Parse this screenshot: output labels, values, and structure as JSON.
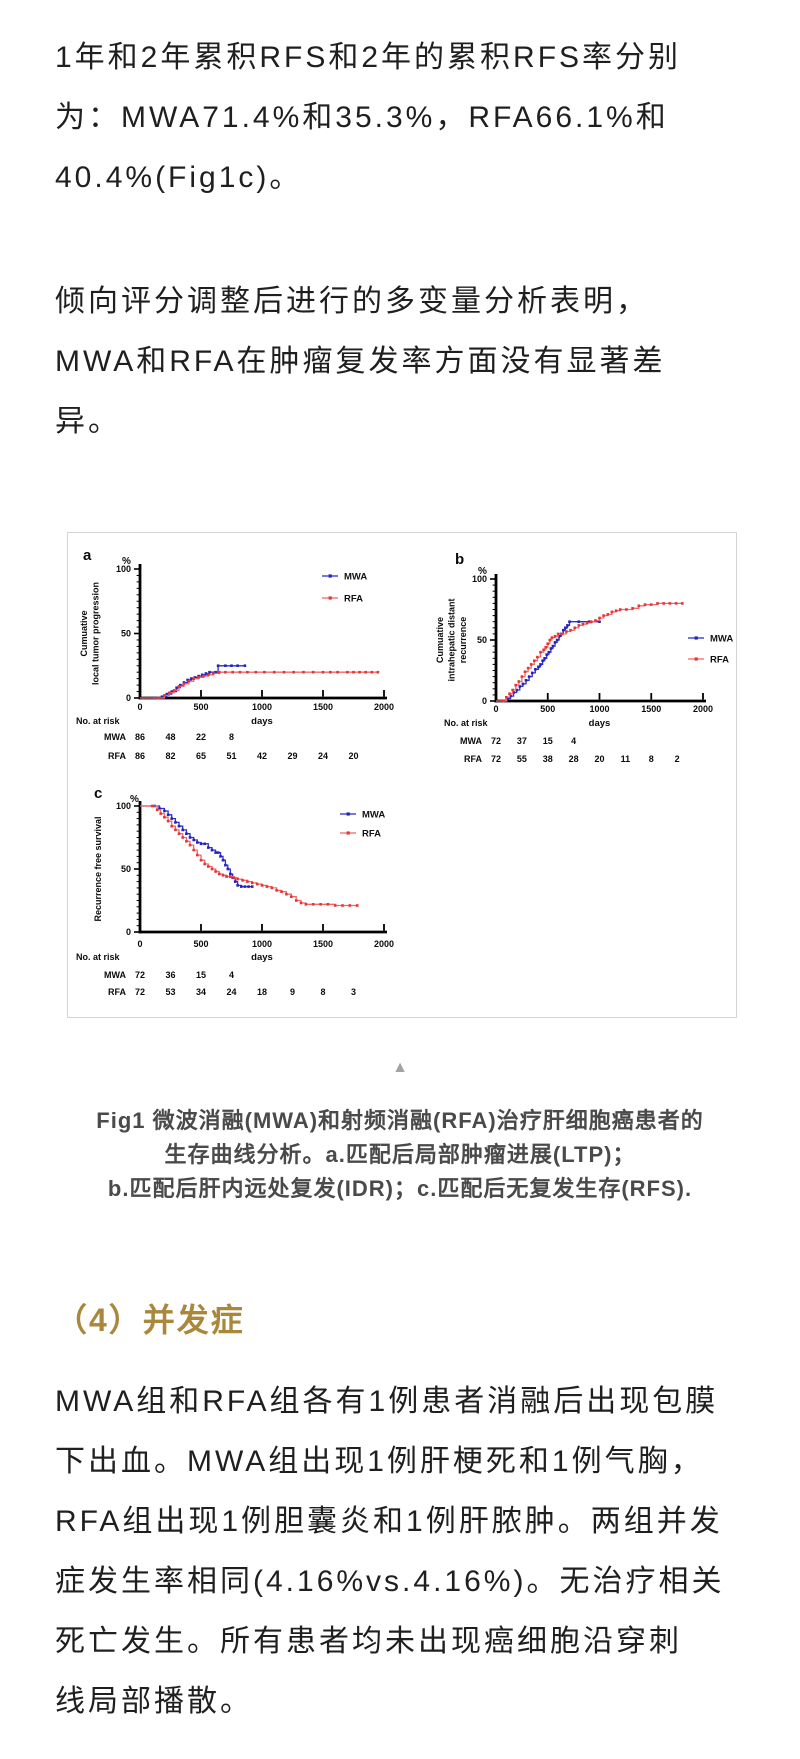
{
  "colors": {
    "body_text": "#1f1f1f",
    "caption_text": "#4a4a4a",
    "heading_gold": "#a9873b",
    "mwa_blue": "#2a2ac8",
    "rfa_red": "#e63535",
    "figure_border": "#d4d4d4",
    "triangle_gray": "#a3a3a3"
  },
  "paragraphs": {
    "p1": "1年和2年累积RFS和2年的累积RFS率分别\n为：MWA71.4%和35.3%，RFA66.1%和\n40.4%(Fig1c)。",
    "p2": "倾向评分调整后进行的多变量分析表明，\nMWA和RFA在肿瘤复发率方面没有显著差\n异。",
    "p3": "MWA组和RFA组各有1例患者消融后出现包膜\n下出血。MWA组出现1例肝梗死和1例气胸，\nRFA组出现1例胆囊炎和1例肝脓肿。两组并发\n症发生率相同(4.16%vs.4.16%)。无治疗相关\n死亡发生。所有患者均未出现癌细胞沿穿刺\n线局部播散。"
  },
  "figure": {
    "collapse_icon": "▲",
    "caption": "Fig1 微波消融(MWA)和射频消融(RFA)治疗肝细胞癌患者的\n生存曲线分析。a.匹配后局部肿瘤进展(LTP)；\nb.匹配后肝内远处复发(IDR)；c.匹配后无复发生存(RFS)."
  },
  "section_heading": "（4）并发症",
  "chart_data": [
    {
      "id": "a",
      "type": "line",
      "panel_label": "a",
      "percent_symbol": "%",
      "ylabel_lines": [
        "Cumuative",
        "local tumor progression"
      ],
      "xlabel": "days",
      "ylim": [
        0,
        100
      ],
      "yticks": [
        0,
        50,
        100
      ],
      "xlim": [
        0,
        2000
      ],
      "xticks": [
        0,
        500,
        1000,
        1500,
        2000
      ],
      "series": [
        {
          "name": "MWA",
          "color": "#2424bb",
          "line_color": "#2e2ecf",
          "points": [
            [
              0,
              0
            ],
            [
              120,
              0
            ],
            [
              180,
              1
            ],
            [
              220,
              3
            ],
            [
              260,
              5
            ],
            [
              300,
              8
            ],
            [
              330,
              10
            ],
            [
              360,
              12
            ],
            [
              390,
              14
            ],
            [
              420,
              15
            ],
            [
              450,
              16
            ],
            [
              480,
              17
            ],
            [
              510,
              18
            ],
            [
              540,
              19
            ],
            [
              570,
              20
            ],
            [
              620,
              20
            ],
            [
              640,
              25
            ],
            [
              700,
              25
            ],
            [
              750,
              25
            ],
            [
              800,
              25
            ],
            [
              860,
              25
            ]
          ]
        },
        {
          "name": "RFA",
          "color": "#e53535",
          "line_color": "#f06a6a",
          "points": [
            [
              0,
              0
            ],
            [
              150,
              0
            ],
            [
              200,
              2
            ],
            [
              240,
              4
            ],
            [
              280,
              6
            ],
            [
              320,
              9
            ],
            [
              360,
              11
            ],
            [
              400,
              13
            ],
            [
              440,
              15
            ],
            [
              480,
              16
            ],
            [
              520,
              17
            ],
            [
              560,
              18
            ],
            [
              600,
              19
            ],
            [
              650,
              20
            ],
            [
              700,
              20
            ],
            [
              760,
              20
            ],
            [
              820,
              20
            ],
            [
              880,
              20
            ],
            [
              950,
              20
            ],
            [
              1020,
              20
            ],
            [
              1100,
              20
            ],
            [
              1180,
              20
            ],
            [
              1260,
              20
            ],
            [
              1340,
              20
            ],
            [
              1420,
              20
            ],
            [
              1500,
              20
            ],
            [
              1560,
              20
            ],
            [
              1620,
              20
            ],
            [
              1700,
              20
            ],
            [
              1750,
              20
            ],
            [
              1800,
              20
            ],
            [
              1850,
              20
            ],
            [
              1900,
              20
            ],
            [
              1950,
              20
            ]
          ]
        }
      ],
      "at_risk": {
        "title": "No. at risk",
        "interval": 250,
        "rows": [
          {
            "label": "MWA",
            "values": [
              86,
              48,
              22,
              8
            ]
          },
          {
            "label": "RFA",
            "values": [
              86,
              82,
              65,
              51,
              42,
              29,
              24,
              20
            ]
          }
        ]
      }
    },
    {
      "id": "b",
      "type": "line",
      "panel_label": "b",
      "percent_symbol": "%",
      "ylabel_lines": [
        "Cumuative",
        "intrahepatic distant",
        "recurrence"
      ],
      "xlabel": "days",
      "ylim": [
        0,
        100
      ],
      "yticks": [
        0,
        50,
        100
      ],
      "xlim": [
        0,
        2000
      ],
      "xticks": [
        0,
        500,
        1000,
        1500,
        2000
      ],
      "series": [
        {
          "name": "MWA",
          "color": "#2424bb",
          "line_color": "#2e2ecf",
          "points": [
            [
              0,
              0
            ],
            [
              80,
              0
            ],
            [
              110,
              2
            ],
            [
              140,
              4
            ],
            [
              170,
              7
            ],
            [
              200,
              9
            ],
            [
              230,
              12
            ],
            [
              260,
              14
            ],
            [
              290,
              17
            ],
            [
              320,
              20
            ],
            [
              350,
              23
            ],
            [
              380,
              26
            ],
            [
              410,
              28
            ],
            [
              430,
              30
            ],
            [
              450,
              33
            ],
            [
              470,
              35
            ],
            [
              490,
              38
            ],
            [
              510,
              40
            ],
            [
              530,
              43
            ],
            [
              550,
              45
            ],
            [
              570,
              48
            ],
            [
              590,
              50
            ],
            [
              610,
              53
            ],
            [
              630,
              55
            ],
            [
              650,
              58
            ],
            [
              670,
              60
            ],
            [
              690,
              62
            ],
            [
              710,
              65
            ],
            [
              800,
              65
            ],
            [
              900,
              65
            ],
            [
              1000,
              65
            ]
          ]
        },
        {
          "name": "RFA",
          "color": "#e53535",
          "line_color": "#f06a6a",
          "points": [
            [
              0,
              0
            ],
            [
              70,
              0
            ],
            [
              100,
              3
            ],
            [
              130,
              6
            ],
            [
              160,
              9
            ],
            [
              190,
              13
            ],
            [
              220,
              16
            ],
            [
              250,
              20
            ],
            [
              280,
              24
            ],
            [
              310,
              27
            ],
            [
              340,
              30
            ],
            [
              370,
              33
            ],
            [
              400,
              36
            ],
            [
              430,
              40
            ],
            [
              460,
              42
            ],
            [
              480,
              44
            ],
            [
              500,
              47
            ],
            [
              520,
              50
            ],
            [
              540,
              52
            ],
            [
              570,
              53
            ],
            [
              600,
              55
            ],
            [
              640,
              55
            ],
            [
              680,
              57
            ],
            [
              720,
              58
            ],
            [
              760,
              60
            ],
            [
              800,
              62
            ],
            [
              840,
              63
            ],
            [
              880,
              64
            ],
            [
              920,
              65
            ],
            [
              960,
              66
            ],
            [
              1000,
              68
            ],
            [
              1040,
              70
            ],
            [
              1080,
              71
            ],
            [
              1120,
              73
            ],
            [
              1160,
              74
            ],
            [
              1200,
              75
            ],
            [
              1260,
              75
            ],
            [
              1320,
              76
            ],
            [
              1380,
              78
            ],
            [
              1440,
              79
            ],
            [
              1500,
              79
            ],
            [
              1560,
              80
            ],
            [
              1620,
              80
            ],
            [
              1680,
              80
            ],
            [
              1740,
              80
            ],
            [
              1800,
              80
            ]
          ]
        }
      ],
      "at_risk": {
        "title": "No. at risk",
        "interval": 250,
        "rows": [
          {
            "label": "MWA",
            "values": [
              72,
              37,
              15,
              4
            ]
          },
          {
            "label": "RFA",
            "values": [
              72,
              55,
              38,
              28,
              20,
              11,
              8,
              2
            ]
          }
        ]
      }
    },
    {
      "id": "c",
      "type": "line",
      "panel_label": "c",
      "percent_symbol": "%",
      "ylabel_lines": [
        "Recurrence free survival"
      ],
      "xlabel": "days",
      "ylim": [
        0,
        100
      ],
      "yticks": [
        0,
        50,
        100
      ],
      "xlim": [
        0,
        2000
      ],
      "xticks": [
        0,
        500,
        1000,
        1500,
        2000
      ],
      "series": [
        {
          "name": "MWA",
          "color": "#2424bb",
          "line_color": "#2e2ecf",
          "points": [
            [
              0,
              100
            ],
            [
              120,
              100
            ],
            [
              160,
              98
            ],
            [
              200,
              96
            ],
            [
              230,
              93
            ],
            [
              260,
              90
            ],
            [
              290,
              87
            ],
            [
              320,
              84
            ],
            [
              350,
              81
            ],
            [
              380,
              78
            ],
            [
              410,
              75
            ],
            [
              440,
              73
            ],
            [
              470,
              71
            ],
            [
              500,
              70
            ],
            [
              530,
              70
            ],
            [
              560,
              67
            ],
            [
              590,
              65
            ],
            [
              620,
              63
            ],
            [
              640,
              63
            ],
            [
              660,
              60
            ],
            [
              680,
              57
            ],
            [
              700,
              53
            ],
            [
              720,
              50
            ],
            [
              740,
              46
            ],
            [
              760,
              43
            ],
            [
              780,
              40
            ],
            [
              800,
              37
            ],
            [
              830,
              36
            ],
            [
              860,
              36
            ],
            [
              890,
              36
            ],
            [
              920,
              36
            ]
          ]
        },
        {
          "name": "RFA",
          "color": "#e53535",
          "line_color": "#f06a6a",
          "points": [
            [
              0,
              100
            ],
            [
              100,
              100
            ],
            [
              140,
              97
            ],
            [
              170,
              94
            ],
            [
              200,
              91
            ],
            [
              230,
              88
            ],
            [
              260,
              84
            ],
            [
              290,
              81
            ],
            [
              320,
              78
            ],
            [
              350,
              75
            ],
            [
              380,
              72
            ],
            [
              410,
              69
            ],
            [
              440,
              65
            ],
            [
              470,
              61
            ],
            [
              500,
              57
            ],
            [
              530,
              54
            ],
            [
              560,
              52
            ],
            [
              590,
              50
            ],
            [
              620,
              48
            ],
            [
              650,
              46
            ],
            [
              680,
              45
            ],
            [
              710,
              44
            ],
            [
              740,
              44
            ],
            [
              770,
              43
            ],
            [
              800,
              42
            ],
            [
              840,
              41
            ],
            [
              880,
              40
            ],
            [
              920,
              39
            ],
            [
              960,
              38
            ],
            [
              1000,
              37
            ],
            [
              1040,
              36
            ],
            [
              1080,
              35
            ],
            [
              1120,
              33
            ],
            [
              1160,
              32
            ],
            [
              1200,
              30
            ],
            [
              1240,
              28
            ],
            [
              1280,
              25
            ],
            [
              1320,
              23
            ],
            [
              1360,
              22
            ],
            [
              1420,
              22
            ],
            [
              1480,
              22
            ],
            [
              1540,
              22
            ],
            [
              1600,
              21
            ],
            [
              1660,
              21
            ],
            [
              1720,
              21
            ],
            [
              1780,
              21
            ]
          ]
        }
      ],
      "at_risk": {
        "title": "No. at risk",
        "interval": 250,
        "rows": [
          {
            "label": "MWA",
            "values": [
              72,
              36,
              15,
              4
            ]
          },
          {
            "label": "RFA",
            "values": [
              72,
              53,
              34,
              24,
              18,
              9,
              8,
              3
            ]
          }
        ]
      }
    }
  ]
}
